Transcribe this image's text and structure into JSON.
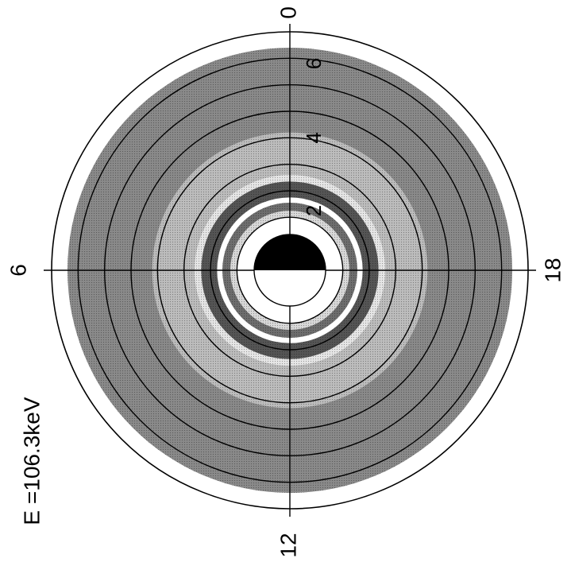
{
  "energy_label": "E =106.3keV",
  "chart_data": {
    "type": "heatmap",
    "projection": "polar",
    "title": "E =106.3keV",
    "local_time_labels": [
      "0",
      "6",
      "12",
      "18"
    ],
    "radial_labels": [
      "2",
      "4",
      "6"
    ],
    "radial_circles": [
      1,
      2,
      3,
      4,
      5,
      6,
      7,
      8
    ],
    "outer_radius": 9,
    "earth_radius": 1,
    "grid": true,
    "colormap": "grayscale",
    "bands": [
      {
        "r_inner": 1.0,
        "r_outer": 2.0,
        "shade": "#ffffff"
      },
      {
        "r_inner": 2.0,
        "r_outer": 2.25,
        "shade": "#d9d9d9"
      },
      {
        "r_inner": 2.25,
        "r_outer": 2.55,
        "shade": "#6e6e6e"
      },
      {
        "r_inner": 2.55,
        "r_outer": 2.75,
        "shade": "#ffffff"
      },
      {
        "r_inner": 2.75,
        "r_outer": 3.35,
        "shade": "#555555"
      },
      {
        "r_inner": 3.35,
        "r_outer": 3.6,
        "shade": "#e6e6e6"
      },
      {
        "r_inner": 3.6,
        "r_outer": 5.2,
        "shade": "#bdbdbd"
      },
      {
        "r_inner": 5.2,
        "r_outer": 8.4,
        "shade": "#8a8a8a"
      },
      {
        "r_inner": 8.4,
        "r_outer": 9.0,
        "shade": "#ffffff"
      }
    ]
  }
}
